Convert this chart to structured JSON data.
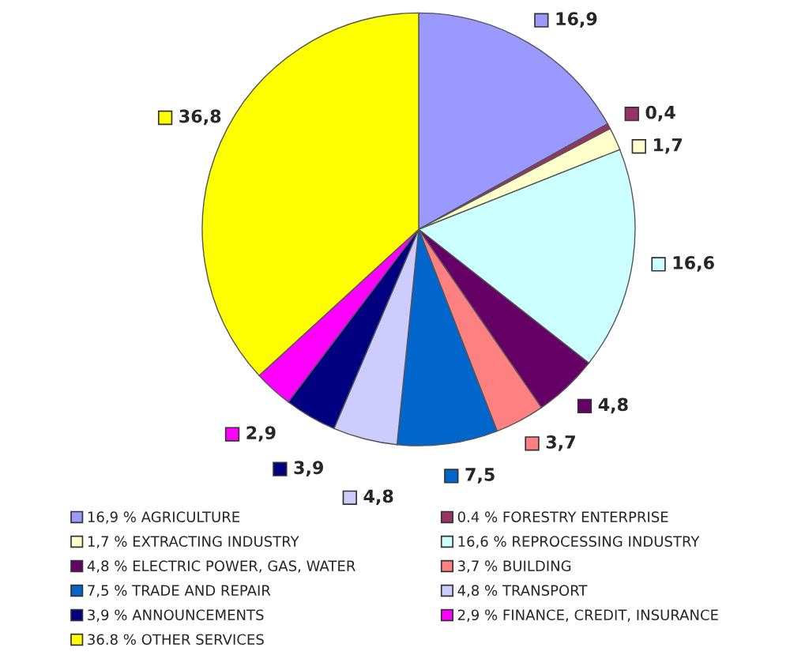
{
  "chart_data": {
    "type": "pie",
    "categories": [
      "16,9 % AGRICULTURE",
      "0.4 % FORESTRY ENTERPRISE",
      "1,7 % EXTRACTING INDUSTRY",
      "16,6 % REPROCESSING INDUSTRY",
      "4,8 % ELECTRIC POWER, GAS, WATER",
      "3,7 % BUILDING",
      "7,5 % TRADE AND REPAIR",
      "4,8 % TRANSPORT",
      "3,9 % ANNOUNCEMENTS",
      "2,9 % FINANCE, CREDIT, INSURANCE",
      "36.8 % OTHER SERVICES"
    ],
    "values": [
      16.9,
      0.4,
      1.7,
      16.6,
      4.8,
      3.7,
      7.5,
      4.8,
      3.9,
      2.9,
      36.8
    ],
    "value_labels": [
      "16,9",
      "0,4",
      "1,7",
      "16,6",
      "4,8",
      "3,7",
      "7,5",
      "4,8",
      "3,9",
      "2,9",
      "36,8"
    ],
    "colors": [
      "#9999ff",
      "#993366",
      "#ffffcc",
      "#ccffff",
      "#660066",
      "#ff8080",
      "#0066cc",
      "#ccccff",
      "#000080",
      "#ff00ff",
      "#ffff00"
    ],
    "legend": "bottom"
  }
}
